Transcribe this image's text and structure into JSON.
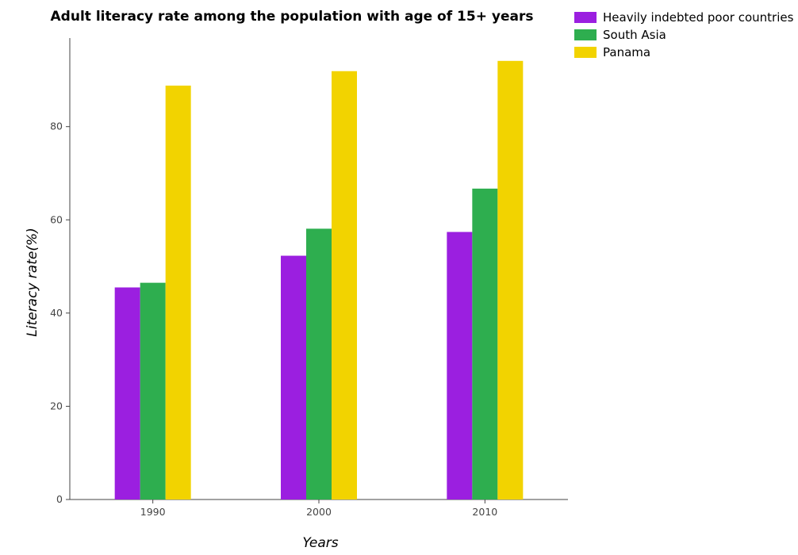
{
  "chart_data": {
    "type": "bar",
    "title": "Adult literacy rate among the population with age of 15+ years",
    "xlabel": "Years",
    "ylabel": "Literacy rate(%)",
    "categories": [
      "1990",
      "2000",
      "2010"
    ],
    "ylim": [
      0,
      99
    ],
    "yticks": [
      0,
      20,
      40,
      60,
      80
    ],
    "grid": false,
    "legend_position": "top-right",
    "series": [
      {
        "name": "Heavily indebted poor countries",
        "color": "#9b1fe0",
        "values": [
          45.5,
          52.3,
          57.4
        ]
      },
      {
        "name": "South Asia",
        "color": "#2eae4f",
        "values": [
          46.5,
          58.1,
          66.7
        ]
      },
      {
        "name": "Panama",
        "color": "#f2d300",
        "values": [
          88.8,
          91.9,
          94.1
        ]
      }
    ]
  }
}
